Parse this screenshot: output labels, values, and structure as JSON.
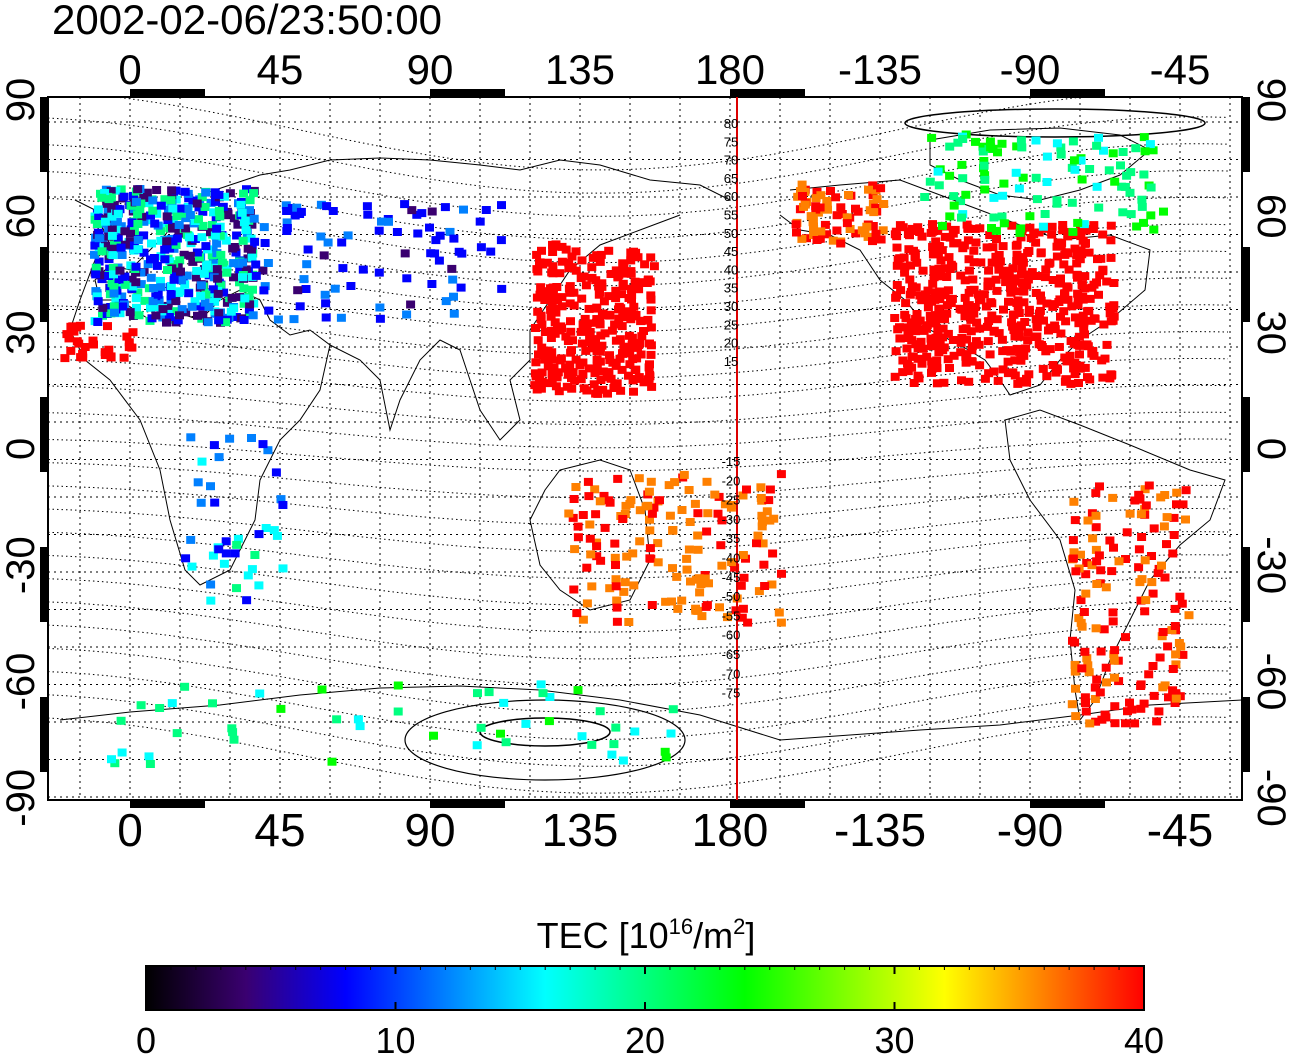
{
  "title": "2002-02-06/23:50:00",
  "map": {
    "lon_ticks": [
      "0",
      "45",
      "90",
      "135",
      "180",
      "-135",
      "-90",
      "-45"
    ],
    "lat_ticks_left": [
      "90",
      "60",
      "30",
      "0",
      "-30",
      "-60",
      "-90"
    ],
    "lat_ticks_right": [
      "90",
      "60",
      "30",
      "0",
      "-30",
      "-60",
      "-90"
    ],
    "meridian_labels_north": [
      "80",
      "75",
      "70",
      "65",
      "60",
      "55",
      "50",
      "45",
      "40",
      "35",
      "30",
      "25",
      "20",
      "15"
    ],
    "meridian_labels_south": [
      "-15",
      "-20",
      "-25",
      "-30",
      "-35",
      "-40",
      "-45",
      "-50",
      "-55",
      "-60",
      "-65",
      "-70",
      "-75"
    ],
    "meridian_line_color": "#dd0000"
  },
  "colorbar": {
    "label": "TEC  [10",
    "label_sup": "16",
    "label_mid": "/m",
    "label_sup2": "2",
    "label_end": "]",
    "ticks": [
      "0",
      "10",
      "20",
      "30",
      "40"
    ],
    "range": [
      0,
      40
    ],
    "colors": [
      "#000000",
      "#3a0070",
      "#0000ff",
      "#0080ff",
      "#00ffff",
      "#00ff80",
      "#00ff00",
      "#80ff00",
      "#ffff00",
      "#ff8000",
      "#ff0000"
    ]
  }
}
